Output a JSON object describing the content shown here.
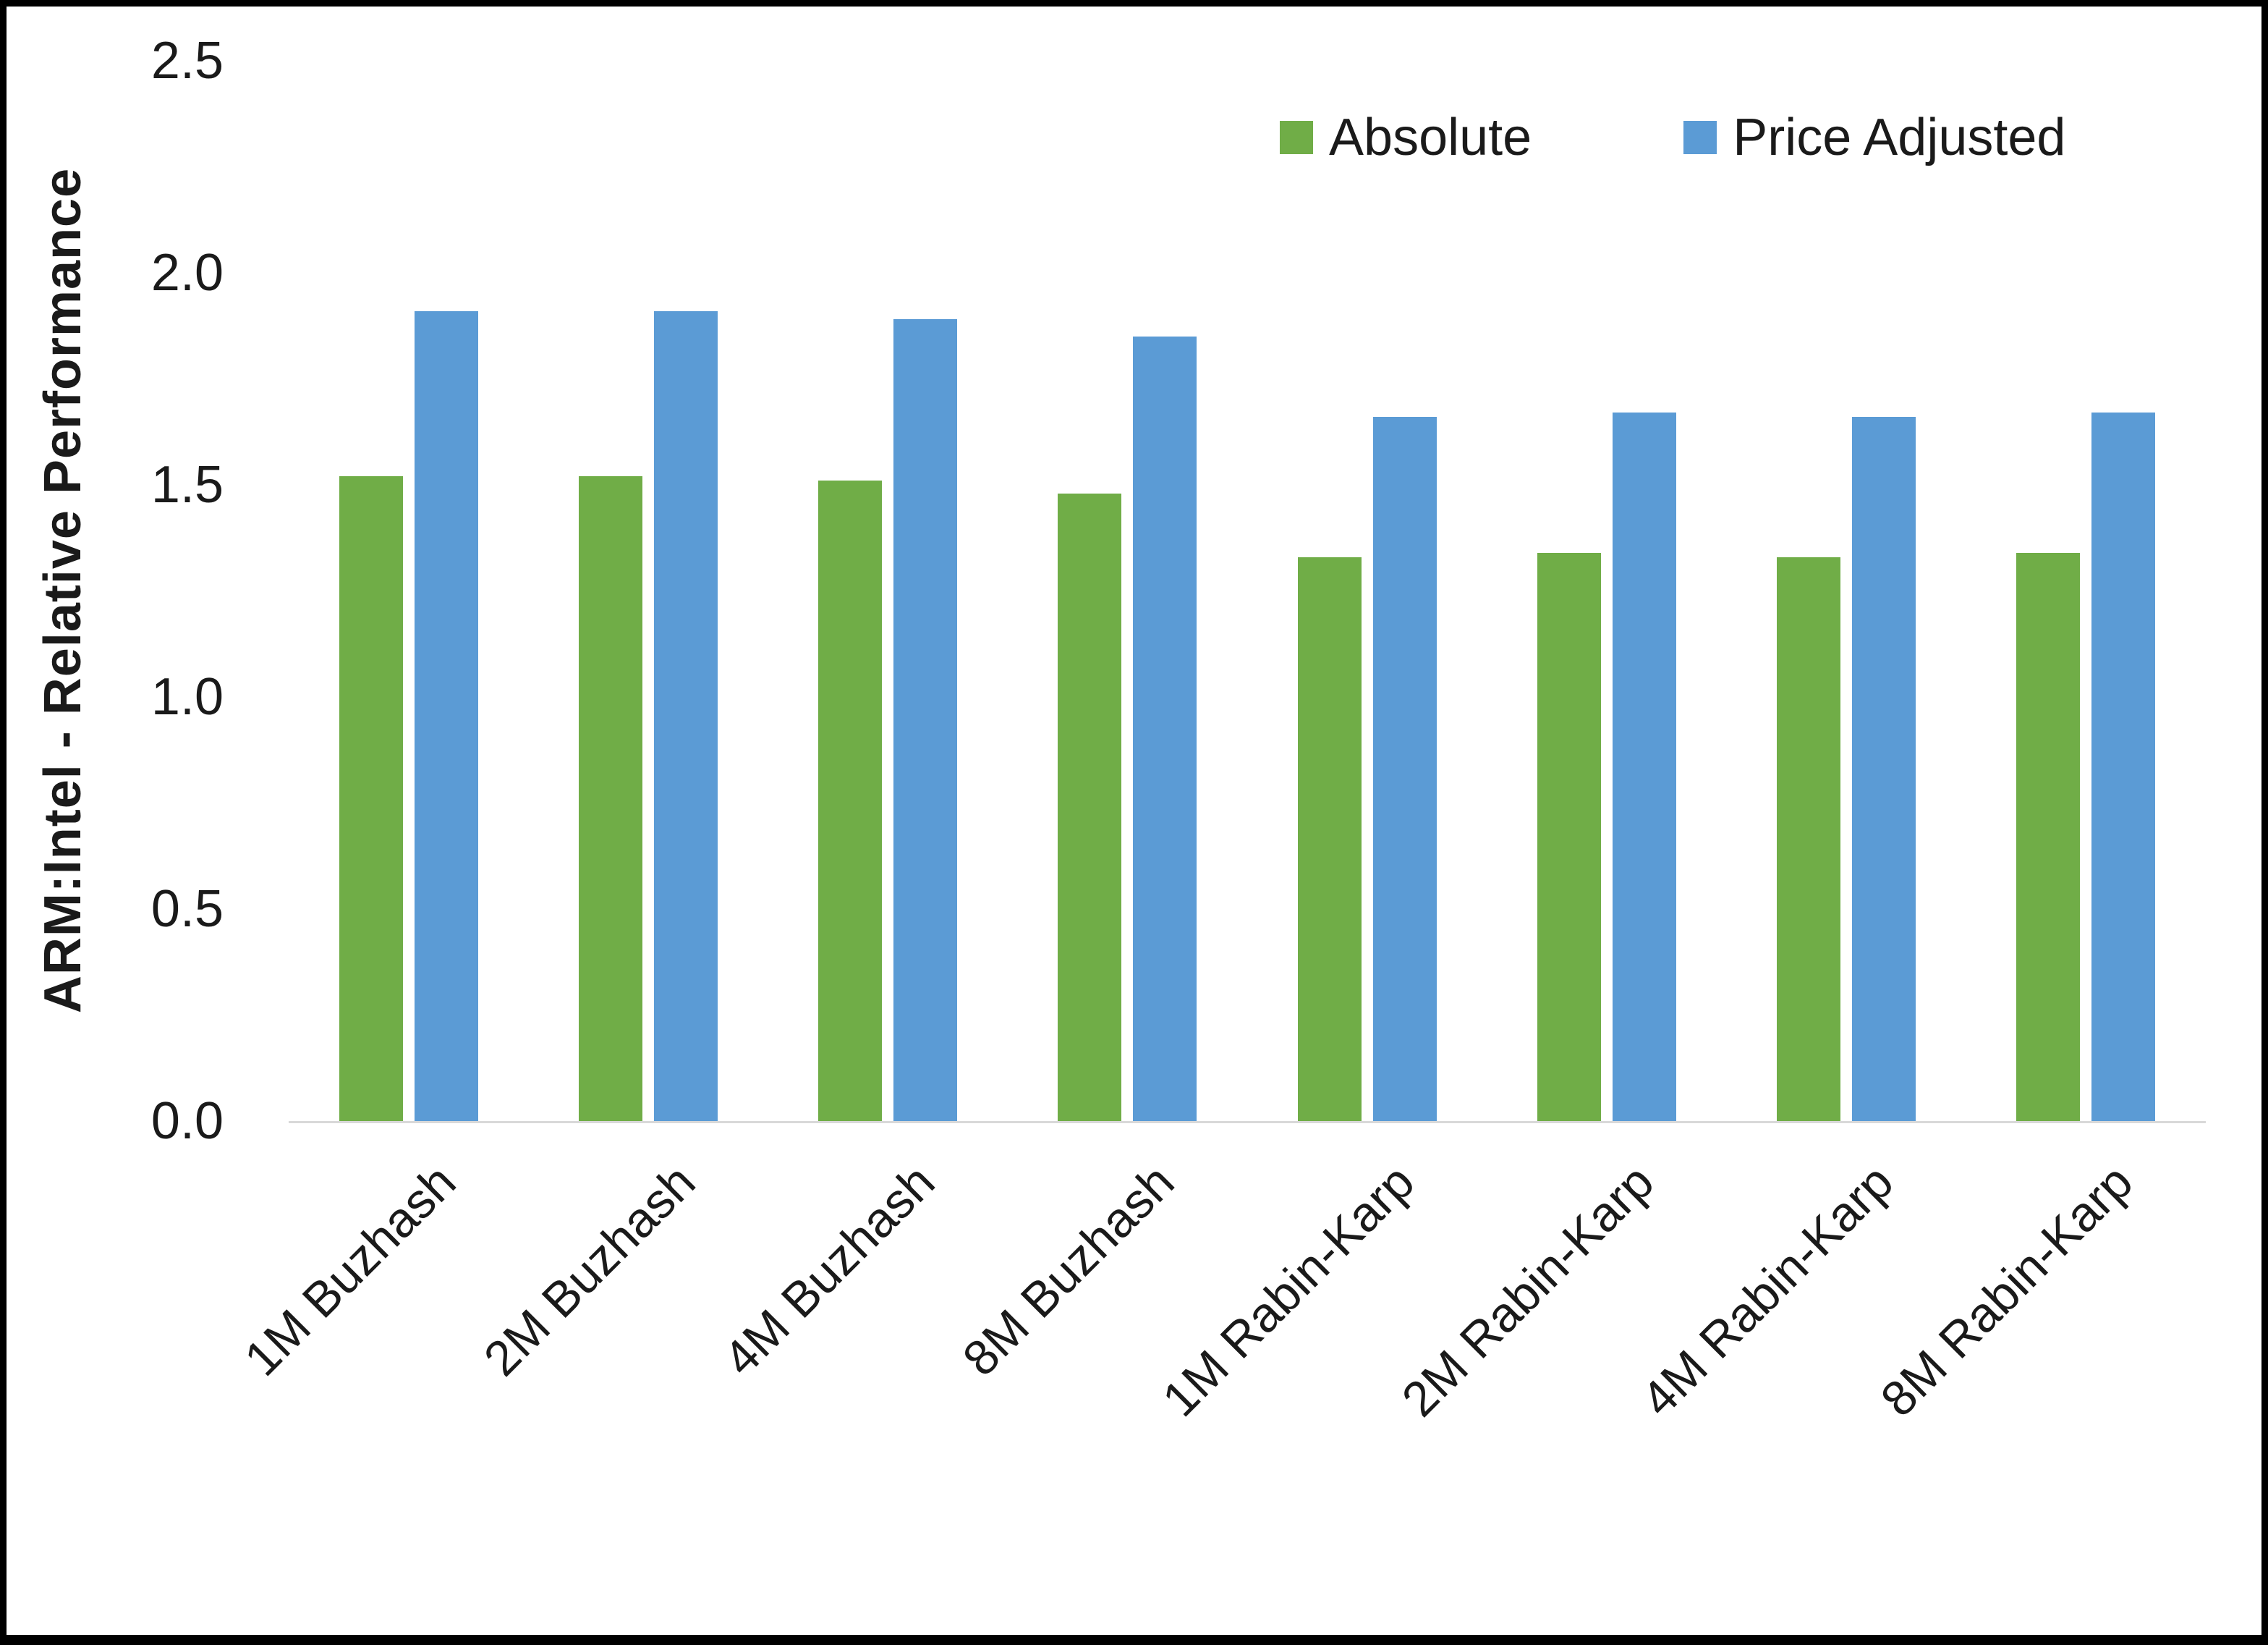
{
  "chart_data": {
    "type": "bar",
    "title": "",
    "xlabel": "",
    "ylabel": "ARM:Intel - Relative Performance",
    "ylim": [
      0,
      2.5
    ],
    "ytick_labels": [
      "0.0",
      "0.5",
      "1.0",
      "1.5",
      "2.0",
      "2.5"
    ],
    "grid": false,
    "legend_position": "top-right",
    "background_color": "#ffffff",
    "categories": [
      "1M Buzhash",
      "2M Buzhash",
      "4M Buzhash",
      "8M Buzhash",
      "1M Rabin-Karp",
      "2M Rabin-Karp",
      "4M Rabin-Karp",
      "8M Rabin-Karp"
    ],
    "series": [
      {
        "name": "Absolute",
        "color": "#70AD47",
        "values": [
          1.52,
          1.52,
          1.51,
          1.48,
          1.33,
          1.34,
          1.33,
          1.34
        ]
      },
      {
        "name": "Price Adjusted",
        "color": "#5B9BD5",
        "values": [
          1.91,
          1.91,
          1.89,
          1.85,
          1.66,
          1.67,
          1.66,
          1.67
        ]
      }
    ]
  }
}
